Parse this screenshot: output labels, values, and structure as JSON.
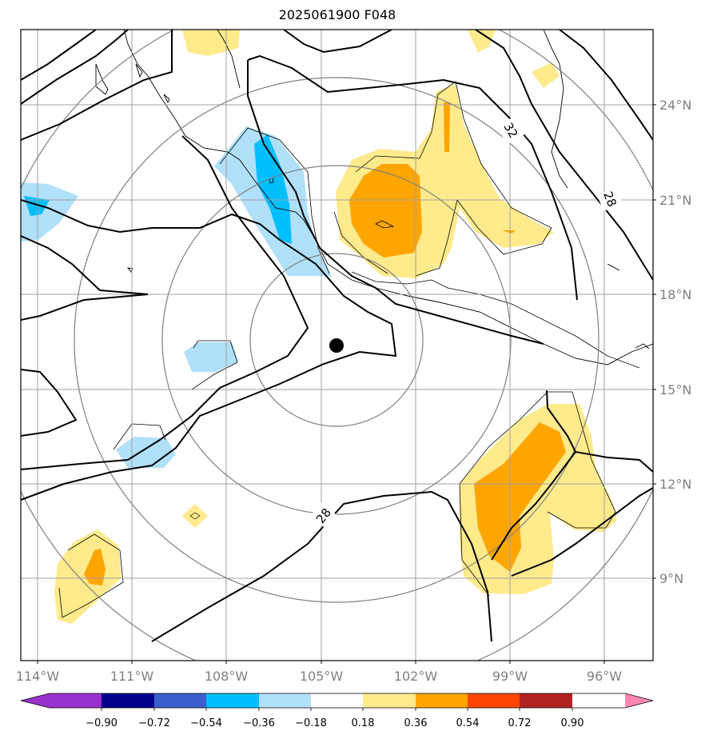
{
  "title": "2025061900 F048",
  "map": {
    "lon_labels": [
      "114°W",
      "111°W",
      "108°W",
      "105°W",
      "102°W",
      "99°W",
      "96°W"
    ],
    "lat_labels": [
      "24°N",
      "21°N",
      "18°N",
      "15°N",
      "12°N",
      "9°N"
    ],
    "contour_labels": [
      "32",
      "28",
      "28"
    ],
    "center_marker": "storm-center-dot"
  },
  "colorbar": {
    "tick_labels": [
      "−0.90",
      "−0.72",
      "−0.54",
      "−0.36",
      "−0.18",
      "0.18",
      "0.36",
      "0.54",
      "0.72",
      "0.90"
    ],
    "colors": [
      "#9932cc",
      "#00008b",
      "#3a5fcd",
      "#00bfff",
      "#b0e0fa",
      "#ffffff",
      "#ffea8c",
      "#ffa500",
      "#ff4500",
      "#b22222",
      "#ff88b0"
    ]
  },
  "colors": {
    "light_blue": "#b0e0fa",
    "blue": "#00bfff",
    "light_yellow": "#ffea8c",
    "orange": "#ffa500",
    "grid": "#a0a0a0",
    "range_ring": "#808080"
  }
}
